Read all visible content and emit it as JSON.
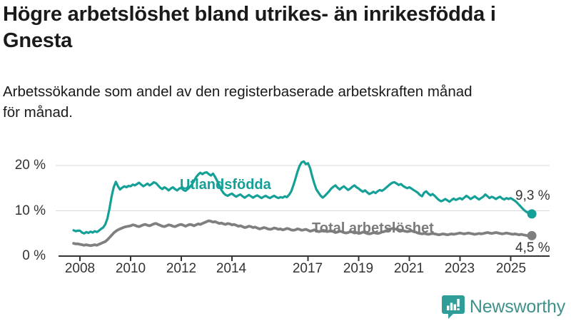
{
  "header": {
    "title": "Högre arbetslöshet bland utrikes- än inrikesfödda i Gnesta",
    "subtitle_line1": "Arbetssökande som andel av den registerbaserade arbetskraften månad",
    "subtitle_line2": "för månad."
  },
  "chart_data": {
    "type": "line",
    "title": "Högre arbetslöshet bland utrikes- än inrikesfödda i Gnesta",
    "subtitle": "Arbetssökande som andel av den registerbaserade arbetskraften månad för månad.",
    "unit": "%",
    "x_start_year": 2007.75,
    "x_step": "1 month",
    "x_tick_years": [
      2008,
      2010,
      2012,
      2014,
      2017,
      2019,
      2021,
      2023,
      2025
    ],
    "x_tick_labels": [
      "2008",
      "2010",
      "2012",
      "2014",
      "2017",
      "2019",
      "2021",
      "2023",
      "2025"
    ],
    "y_tick_labels": [
      "20 %",
      "10 %",
      "0 %"
    ],
    "y_tick_values": [
      20,
      10,
      0
    ],
    "y_grid_values": [
      20,
      10
    ],
    "ylim": [
      0,
      22
    ],
    "grid": "horizontal",
    "axis_color": "#333333",
    "grid_color": "#d9d9d9",
    "series": [
      {
        "name": "Utlandsfödda",
        "color": "#14a096",
        "end_label": "9,3 %",
        "end_value": 9.3,
        "values": [
          5.7,
          5.5,
          5.6,
          5.6,
          5.2,
          5.0,
          5.3,
          5.1,
          5.4,
          5.2,
          5.5,
          5.3,
          5.6,
          6.0,
          6.3,
          7.0,
          8.3,
          10.5,
          13.2,
          15.2,
          16.4,
          15.4,
          14.7,
          15.1,
          15.4,
          15.2,
          15.5,
          15.4,
          15.8,
          15.6,
          15.9,
          16.2,
          15.8,
          15.4,
          15.7,
          16.0,
          15.6,
          15.9,
          16.3,
          16.1,
          15.6,
          15.1,
          14.8,
          15.2,
          14.9,
          14.5,
          14.9,
          15.2,
          14.8,
          14.5,
          14.9,
          15.1,
          14.6,
          14.4,
          14.8,
          15.2,
          15.8,
          16.6,
          17.4,
          18.0,
          18.4,
          18.1,
          18.4,
          18.5,
          18.1,
          17.8,
          18.2,
          17.5,
          16.6,
          15.6,
          14.6,
          13.9,
          13.5,
          13.3,
          13.6,
          13.8,
          13.4,
          13.1,
          13.4,
          13.6,
          13.2,
          12.9,
          13.2,
          13.5,
          13.2,
          12.9,
          13.2,
          13.4,
          13.1,
          12.8,
          13.1,
          13.3,
          13.0,
          12.8,
          13.1,
          13.3,
          13.0,
          12.8,
          13.0,
          12.9,
          13.2,
          13.0,
          13.5,
          14.2,
          15.5,
          17.0,
          18.6,
          19.9,
          20.7,
          20.9,
          20.3,
          20.5,
          19.4,
          17.6,
          16.0,
          14.7,
          14.0,
          13.3,
          12.9,
          13.3,
          13.8,
          14.3,
          14.9,
          15.3,
          15.6,
          15.1,
          14.7,
          15.1,
          15.4,
          15.0,
          14.6,
          14.9,
          15.3,
          15.6,
          15.2,
          14.9,
          14.5,
          14.2,
          14.5,
          14.1,
          13.7,
          13.9,
          14.2,
          13.9,
          14.3,
          14.6,
          14.4,
          14.7,
          15.1,
          15.5,
          15.9,
          16.2,
          16.3,
          16.0,
          15.7,
          15.9,
          15.5,
          15.2,
          15.0,
          15.2,
          14.9,
          14.6,
          14.3,
          14.0,
          13.5,
          13.2,
          14.0,
          14.3,
          13.8,
          13.4,
          13.7,
          13.3,
          12.8,
          12.4,
          12.1,
          12.3,
          12.6,
          12.3,
          12.0,
          12.4,
          12.7,
          12.4,
          12.6,
          12.8,
          12.5,
          12.9,
          13.3,
          13.0,
          12.6,
          12.9,
          13.2,
          12.8,
          12.5,
          12.8,
          13.1,
          13.6,
          13.2,
          12.8,
          13.1,
          12.9,
          12.6,
          12.9,
          13.1,
          12.7,
          12.5,
          12.8,
          12.6,
          12.8,
          12.5,
          12.2,
          11.8,
          11.3,
          10.8,
          10.3,
          9.9,
          9.6,
          9.4,
          9.3
        ]
      },
      {
        "name": "Total arbetslöshet",
        "color": "#7f7f7f",
        "end_label": "4,5 %",
        "end_value": 4.5,
        "values": [
          2.8,
          2.7,
          2.7,
          2.6,
          2.5,
          2.4,
          2.5,
          2.4,
          2.3,
          2.4,
          2.5,
          2.4,
          2.6,
          2.8,
          3.0,
          3.2,
          3.6,
          4.1,
          4.6,
          5.1,
          5.5,
          5.8,
          6.0,
          6.2,
          6.4,
          6.5,
          6.6,
          6.7,
          6.9,
          6.8,
          6.6,
          6.5,
          6.7,
          6.9,
          7.0,
          6.8,
          6.7,
          6.9,
          7.1,
          7.2,
          7.0,
          6.8,
          6.6,
          6.5,
          6.7,
          6.9,
          6.8,
          6.6,
          6.5,
          6.7,
          6.9,
          7.0,
          6.8,
          6.6,
          6.8,
          7.0,
          6.9,
          6.7,
          6.9,
          7.1,
          7.0,
          7.2,
          7.4,
          7.6,
          7.8,
          7.7,
          7.5,
          7.6,
          7.4,
          7.2,
          7.3,
          7.1,
          7.0,
          7.2,
          7.1,
          6.9,
          7.0,
          6.8,
          6.6,
          6.7,
          6.5,
          6.3,
          6.4,
          6.6,
          6.5,
          6.3,
          6.4,
          6.2,
          6.0,
          6.1,
          6.3,
          6.2,
          6.0,
          5.9,
          6.0,
          6.2,
          6.1,
          5.9,
          6.0,
          5.8,
          5.9,
          6.1,
          6.0,
          5.8,
          5.7,
          5.8,
          6.0,
          5.9,
          5.7,
          5.8,
          5.9,
          5.7,
          5.5,
          5.6,
          5.8,
          5.6,
          5.4,
          5.5,
          5.7,
          5.6,
          5.4,
          5.5,
          5.6,
          5.4,
          5.2,
          5.3,
          5.5,
          5.4,
          5.2,
          5.1,
          5.2,
          5.4,
          5.3,
          5.1,
          5.2,
          5.0,
          5.1,
          5.3,
          5.2,
          5.0,
          4.9,
          5.0,
          5.2,
          5.1,
          5.0,
          5.1,
          5.3,
          5.4,
          5.6,
          5.8,
          6.0,
          6.1,
          6.0,
          5.9,
          5.8,
          5.7,
          5.6,
          5.5,
          5.4,
          5.5,
          5.6,
          5.4,
          5.3,
          5.1,
          5.0,
          4.9,
          5.0,
          4.9,
          4.8,
          4.9,
          5.0,
          4.9,
          4.8,
          4.7,
          4.8,
          4.9,
          4.8,
          4.7,
          4.8,
          4.9,
          4.8,
          4.9,
          5.0,
          5.1,
          5.0,
          4.9,
          5.0,
          5.1,
          5.0,
          4.9,
          4.8,
          4.9,
          5.0,
          4.9,
          5.0,
          5.1,
          5.2,
          5.1,
          5.0,
          5.1,
          5.2,
          5.1,
          5.0,
          4.9,
          5.0,
          5.1,
          5.0,
          4.9,
          4.8,
          4.9,
          4.8,
          4.7,
          4.8,
          4.7,
          4.6,
          4.5,
          4.5,
          4.5
        ]
      }
    ]
  },
  "branding": {
    "logo_text": "Newsworthy",
    "logo_text_color": "#3f918c",
    "logo_icon": "bar-chart-speech-bubble-icon",
    "logo_icon_color": "#2f9e98"
  }
}
